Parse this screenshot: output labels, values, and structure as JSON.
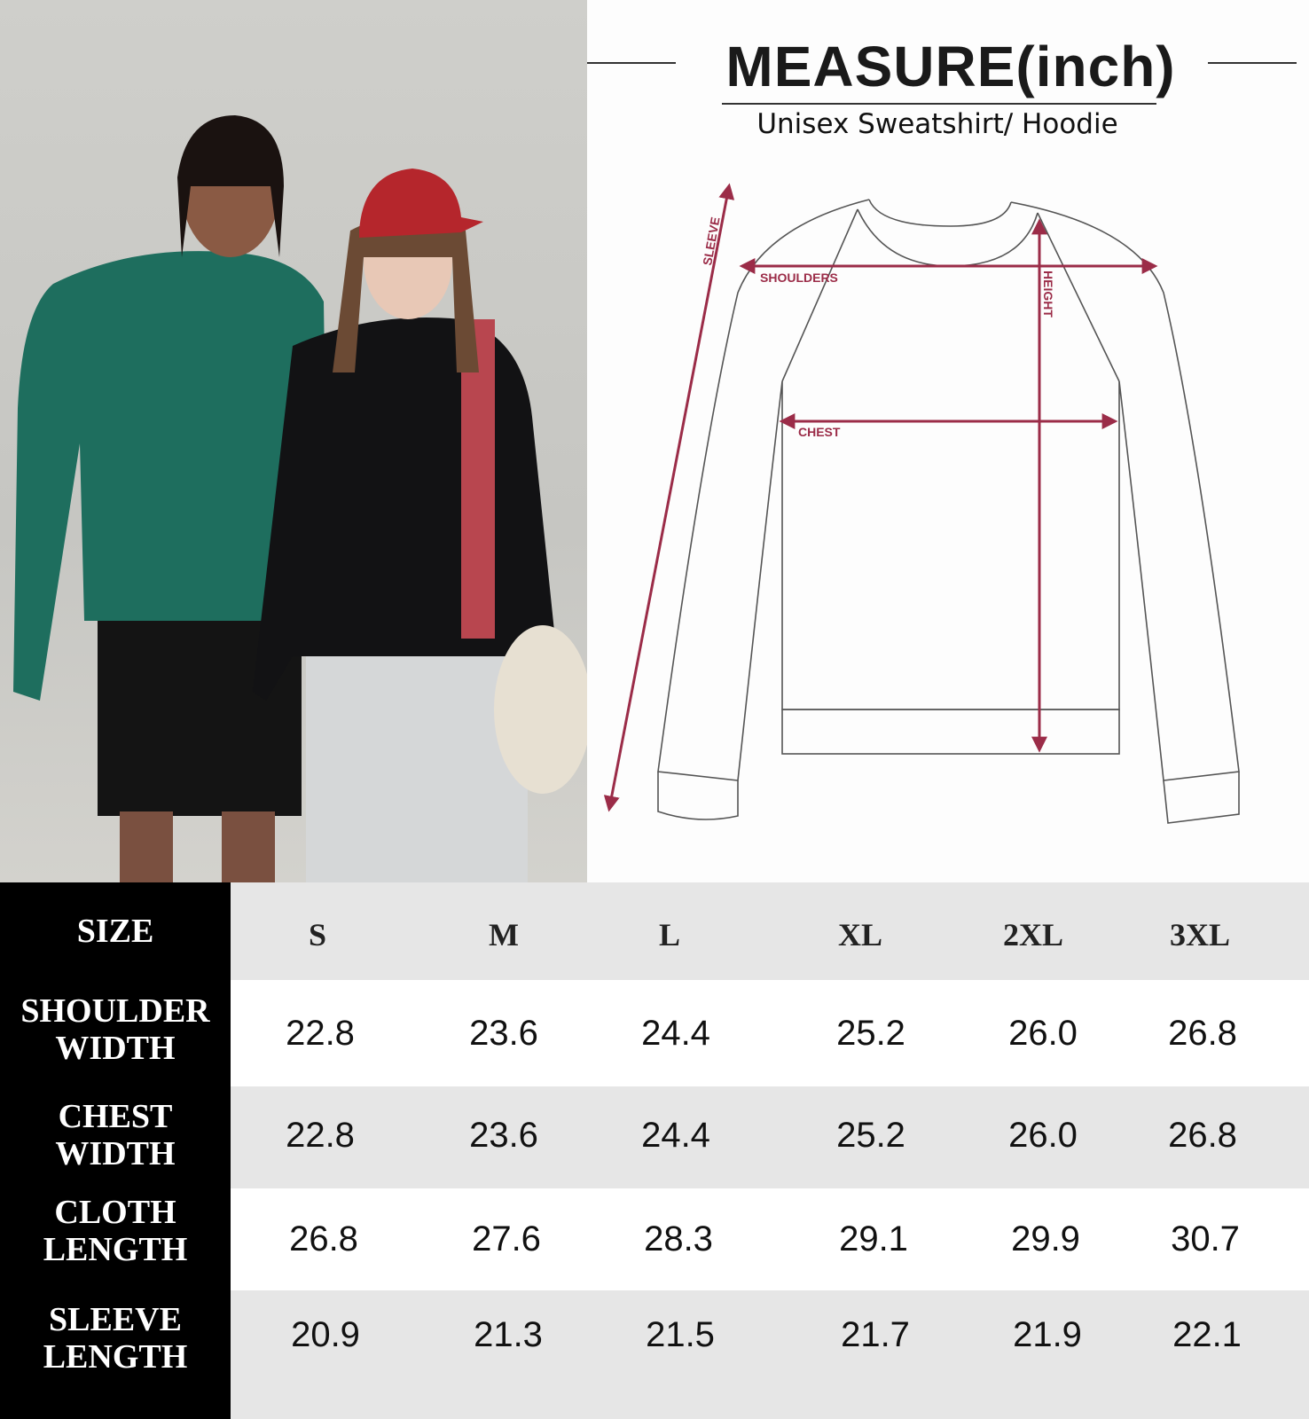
{
  "header": {
    "title": "MEASURE(inch)",
    "subtitle": "Unisex Sweatshirt/ Hoodie"
  },
  "diagram": {
    "labels": {
      "sleeve": "SLEEVE",
      "shoulders": "SHOULDERS",
      "height": "HEIGHT",
      "chest": "CHEST"
    },
    "accent_color": "#9b2c48"
  },
  "size_table": {
    "header_label": "SIZE",
    "sizes": [
      "S",
      "M",
      "L",
      "XL",
      "2XL",
      "3XL"
    ],
    "rows": [
      {
        "label": "SHOULDER\nWIDTH",
        "values": [
          "22.8",
          "23.6",
          "24.4",
          "25.2",
          "26.0",
          "26.8"
        ]
      },
      {
        "label": "CHEST\nWIDTH",
        "values": [
          "22.8",
          "23.6",
          "24.4",
          "25.2",
          "26.0",
          "26.8"
        ]
      },
      {
        "label": "CLOTH\nLENGTH",
        "values": [
          "26.8",
          "27.6",
          "28.3",
          "29.1",
          "29.9",
          "30.7"
        ]
      },
      {
        "label": "SLEEVE\nLENGTH",
        "values": [
          "20.9",
          "21.3",
          "21.5",
          "21.7",
          "21.9",
          "22.1"
        ]
      }
    ]
  }
}
